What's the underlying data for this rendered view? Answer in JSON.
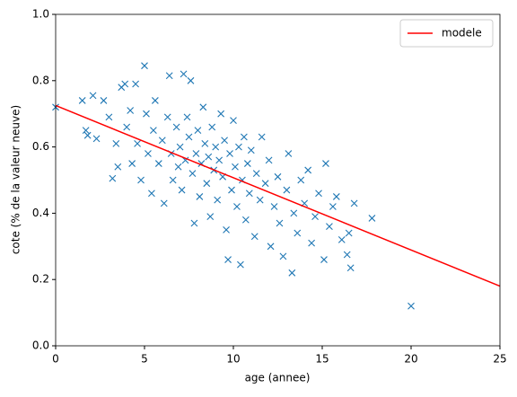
{
  "chart_data": {
    "type": "scatter",
    "xlabel": "age (annee)",
    "ylabel": "cote (% de la valeur neuve)",
    "xlim": [
      0,
      25
    ],
    "xticks": [
      0,
      5,
      10,
      15,
      20,
      25
    ],
    "ylim": [
      0,
      1
    ],
    "yticks": [
      {
        "value": 0,
        "label": "0.0"
      },
      {
        "value": 0.2,
        "label": "0.2"
      },
      {
        "value": 0.4,
        "label": "0.4"
      },
      {
        "value": 0.6,
        "label": "0.6"
      },
      {
        "value": 0.8,
        "label": "0.8"
      },
      {
        "value": 1,
        "label": "1.0"
      }
    ],
    "legend": "upper right",
    "series": [
      {
        "type": "scatter",
        "marker": "x",
        "color": "#1f77b4",
        "x": [
          0,
          1.5,
          1.7,
          1.8,
          2.1,
          2.3,
          2.7,
          3.0,
          3.2,
          3.4,
          3.5,
          3.7,
          3.9,
          4.0,
          4.2,
          4.3,
          4.5,
          4.6,
          4.8,
          5.0,
          5.1,
          5.2,
          5.4,
          5.5,
          5.6,
          5.8,
          6.0,
          6.1,
          6.3,
          6.4,
          6.5,
          6.6,
          6.8,
          6.9,
          7.0,
          7.1,
          7.2,
          7.3,
          7.4,
          7.5,
          7.6,
          7.7,
          7.8,
          7.9,
          8.0,
          8.1,
          8.2,
          8.3,
          8.4,
          8.5,
          8.6,
          8.7,
          8.8,
          8.9,
          9.0,
          9.1,
          9.2,
          9.3,
          9.4,
          9.5,
          9.6,
          9.7,
          9.8,
          9.9,
          10.0,
          10.1,
          10.2,
          10.3,
          10.4,
          10.5,
          10.6,
          10.7,
          10.8,
          10.9,
          11.0,
          11.2,
          11.3,
          11.5,
          11.6,
          11.8,
          12.0,
          12.1,
          12.3,
          12.5,
          12.6,
          12.8,
          13.0,
          13.1,
          13.3,
          13.4,
          13.6,
          13.8,
          14.0,
          14.2,
          14.4,
          14.6,
          14.8,
          15.1,
          15.2,
          15.4,
          15.6,
          15.8,
          16.1,
          16.4,
          16.5,
          16.6,
          16.8,
          17.8,
          20.0
        ],
        "values": [
          0.72,
          0.74,
          0.65,
          0.635,
          0.755,
          0.625,
          0.74,
          0.69,
          0.505,
          0.61,
          0.54,
          0.78,
          0.79,
          0.66,
          0.71,
          0.55,
          0.79,
          0.61,
          0.5,
          0.845,
          0.7,
          0.58,
          0.46,
          0.65,
          0.74,
          0.55,
          0.62,
          0.43,
          0.69,
          0.815,
          0.58,
          0.5,
          0.66,
          0.54,
          0.6,
          0.47,
          0.82,
          0.56,
          0.69,
          0.63,
          0.8,
          0.52,
          0.37,
          0.58,
          0.65,
          0.45,
          0.55,
          0.72,
          0.61,
          0.49,
          0.57,
          0.39,
          0.66,
          0.53,
          0.6,
          0.44,
          0.56,
          0.7,
          0.51,
          0.62,
          0.35,
          0.26,
          0.58,
          0.47,
          0.68,
          0.54,
          0.42,
          0.6,
          0.245,
          0.5,
          0.63,
          0.38,
          0.55,
          0.46,
          0.59,
          0.33,
          0.52,
          0.44,
          0.63,
          0.49,
          0.56,
          0.3,
          0.42,
          0.51,
          0.37,
          0.27,
          0.47,
          0.58,
          0.22,
          0.4,
          0.34,
          0.5,
          0.43,
          0.53,
          0.31,
          0.39,
          0.46,
          0.26,
          0.55,
          0.36,
          0.42,
          0.45,
          0.32,
          0.275,
          0.34,
          0.235,
          0.43,
          0.385,
          0.12
        ]
      },
      {
        "type": "line",
        "name": "modele",
        "color": "#ff0000",
        "x": [
          0,
          25
        ],
        "values": [
          0.725,
          0.18
        ]
      }
    ]
  }
}
